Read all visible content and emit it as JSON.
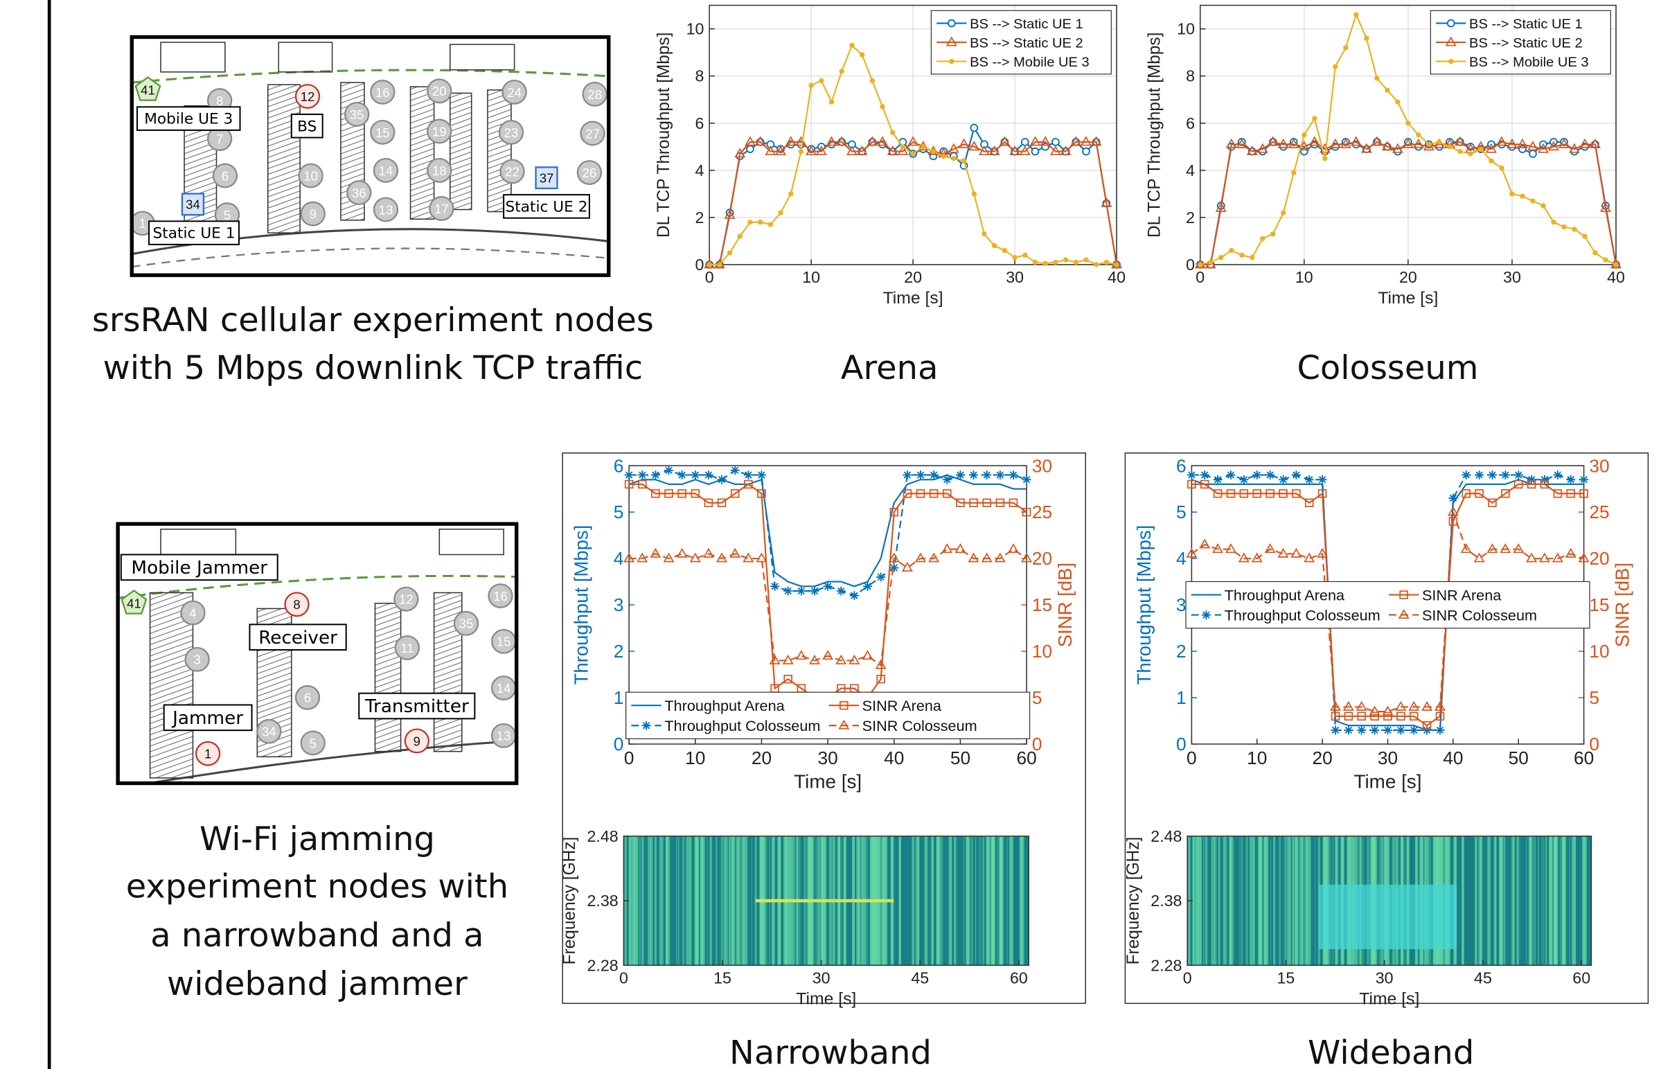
{
  "chart_data": [
    {
      "type": "line",
      "xlabel": "Time [s]",
      "ylabel": "DL TCP Throughput [Mbps]",
      "xlim": [
        0,
        40
      ],
      "ylim": [
        0,
        11
      ],
      "xticks": [
        0,
        10,
        20,
        30,
        40
      ],
      "yticks": [
        0,
        2,
        4,
        6,
        8,
        10
      ],
      "grid": true,
      "legend": "upper right",
      "x": [
        0,
        1,
        2,
        3,
        4,
        5,
        6,
        7,
        8,
        9,
        10,
        11,
        12,
        13,
        14,
        15,
        16,
        17,
        18,
        19,
        20,
        21,
        22,
        23,
        24,
        25,
        26,
        27,
        28,
        29,
        30,
        31,
        32,
        33,
        34,
        35,
        36,
        37,
        38,
        39,
        40
      ],
      "series": [
        {
          "name": "BS --> Static UE 1",
          "color": "#0072bd",
          "marker": "o",
          "values": [
            0,
            0,
            2.2,
            4.6,
            4.9,
            5.2,
            5.1,
            4.9,
            5.1,
            5.1,
            4.9,
            5.0,
            5.1,
            5.2,
            5.1,
            4.8,
            5.2,
            5.1,
            4.8,
            5.2,
            4.7,
            4.9,
            4.6,
            4.8,
            4.6,
            4.2,
            5.8,
            5.1,
            4.8,
            5.2,
            4.8,
            5.2,
            4.8,
            5.0,
            5.2,
            4.8,
            5.2,
            4.8,
            5.2,
            2.6,
            0
          ]
        },
        {
          "name": "BS --> Static UE 2",
          "color": "#d95319",
          "marker": "^",
          "values": [
            0,
            0,
            2.1,
            4.7,
            5.2,
            5.2,
            4.8,
            4.8,
            5.2,
            5.2,
            4.8,
            4.8,
            5.2,
            5.2,
            4.8,
            4.8,
            5.2,
            5.2,
            4.8,
            4.8,
            5.2,
            5.0,
            4.8,
            4.7,
            4.9,
            5.1,
            5.0,
            4.8,
            4.8,
            5.2,
            4.8,
            4.8,
            5.2,
            5.2,
            4.8,
            4.8,
            5.2,
            5.2,
            5.2,
            2.6,
            0
          ]
        },
        {
          "name": "BS --> Mobile UE 3",
          "color": "#edb120",
          "marker": ".",
          "values": [
            0,
            0,
            0.5,
            1.2,
            1.8,
            1.8,
            1.7,
            2.2,
            3.0,
            4.8,
            7.6,
            7.8,
            6.9,
            8.2,
            9.3,
            8.9,
            7.8,
            6.7,
            5.6,
            5.0,
            4.7,
            5.0,
            4.8,
            4.6,
            4.5,
            4.4,
            3.0,
            1.3,
            0.8,
            0.6,
            0.3,
            0.4,
            0.1,
            0.05,
            0.1,
            0.2,
            0.1,
            0.2,
            0,
            0.1,
            0
          ]
        }
      ]
    },
    {
      "type": "line",
      "xlabel": "Time [s]",
      "ylabel": "DL TCP Throughput [Mbps]",
      "xlim": [
        0,
        40
      ],
      "ylim": [
        0,
        11
      ],
      "xticks": [
        0,
        10,
        20,
        30,
        40
      ],
      "yticks": [
        0,
        2,
        4,
        6,
        8,
        10
      ],
      "grid": true,
      "legend": "upper right",
      "x": [
        0,
        1,
        2,
        3,
        4,
        5,
        6,
        7,
        8,
        9,
        10,
        11,
        12,
        13,
        14,
        15,
        16,
        17,
        18,
        19,
        20,
        21,
        22,
        23,
        24,
        25,
        26,
        27,
        28,
        29,
        30,
        31,
        32,
        33,
        34,
        35,
        36,
        37,
        38,
        39,
        40
      ],
      "series": [
        {
          "name": "BS --> Static UE 1",
          "color": "#0072bd",
          "marker": "o",
          "values": [
            0,
            0,
            2.5,
            5.0,
            5.2,
            4.8,
            4.8,
            5.2,
            5.0,
            5.2,
            4.8,
            5.1,
            4.8,
            5.0,
            5.2,
            5.1,
            4.9,
            5.2,
            5.0,
            4.8,
            5.2,
            5.0,
            5.1,
            5.0,
            5.2,
            5.2,
            5.0,
            4.9,
            5.1,
            5.1,
            5.0,
            4.9,
            4.7,
            5.1,
            5.2,
            5.2,
            4.8,
            5.0,
            5.1,
            2.5,
            0
          ]
        },
        {
          "name": "BS --> Static UE 2",
          "color": "#d95319",
          "marker": "^",
          "values": [
            0,
            0,
            2.4,
            5.1,
            5.1,
            4.8,
            4.9,
            5.2,
            5.1,
            5.1,
            5.0,
            5.2,
            4.9,
            5.1,
            5.1,
            5.2,
            4.9,
            5.2,
            5.0,
            4.9,
            5.1,
            5.1,
            5.0,
            5.1,
            5.1,
            5.2,
            4.9,
            5.0,
            4.9,
            5.2,
            5.1,
            5.1,
            5.0,
            4.9,
            5.0,
            5.1,
            4.9,
            5.1,
            5.1,
            2.4,
            0
          ]
        },
        {
          "name": "BS --> Mobile UE 3",
          "color": "#edb120",
          "marker": ".",
          "values": [
            0,
            0.1,
            0.3,
            0.6,
            0.4,
            0.3,
            1.1,
            1.3,
            2.2,
            3.9,
            5.5,
            6.2,
            4.5,
            8.4,
            9.2,
            10.6,
            9.6,
            7.9,
            7.4,
            6.9,
            6.0,
            5.5,
            5.1,
            5.2,
            5.0,
            4.8,
            4.7,
            4.9,
            4.4,
            4.1,
            3.0,
            2.9,
            2.7,
            2.5,
            1.8,
            1.6,
            1.5,
            1.2,
            0.5,
            0.2,
            0
          ]
        }
      ]
    },
    {
      "type": "line",
      "xlabel": "Time [s]",
      "ylabel": "Throughput [Mbps]",
      "y2label": "SINR [dB]",
      "ycolor": "#0072bd",
      "y2color": "#d95319",
      "xlim": [
        0,
        60
      ],
      "ylim": [
        0,
        6
      ],
      "y2lim": [
        0,
        30
      ],
      "xticks": [
        0,
        10,
        20,
        30,
        40,
        50,
        60
      ],
      "yticks": [
        0,
        1,
        2,
        3,
        4,
        5,
        6
      ],
      "y2ticks": [
        0,
        5,
        10,
        15,
        20,
        25,
        30
      ],
      "grid": false,
      "legend": "lower center",
      "legend_columns": 2,
      "x": [
        0,
        2,
        4,
        6,
        8,
        10,
        12,
        14,
        16,
        18,
        20,
        22,
        24,
        26,
        28,
        30,
        32,
        34,
        36,
        38,
        40,
        42,
        44,
        46,
        48,
        50,
        52,
        54,
        56,
        58,
        60
      ],
      "series": [
        {
          "name": "Throughput Arena",
          "color": "#0072bd",
          "marker": "none",
          "values": [
            5.6,
            5.7,
            5.7,
            5.6,
            5.6,
            5.7,
            5.6,
            5.7,
            5.6,
            5.6,
            5.7,
            3.7,
            3.5,
            3.4,
            3.4,
            3.5,
            3.5,
            3.4,
            3.5,
            4.0,
            5.2,
            5.6,
            5.7,
            5.7,
            5.8,
            5.7,
            5.6,
            5.6,
            5.6,
            5.5,
            5.5
          ]
        },
        {
          "name": "Throughput Colosseum",
          "color": "#0072bd",
          "marker": "*",
          "dash": true,
          "values": [
            5.8,
            5.8,
            5.8,
            5.9,
            5.8,
            5.8,
            5.8,
            5.7,
            5.9,
            5.8,
            5.8,
            3.4,
            3.3,
            3.3,
            3.3,
            3.4,
            3.3,
            3.2,
            3.4,
            3.6,
            3.8,
            5.8,
            5.8,
            5.8,
            5.7,
            5.8,
            5.8,
            5.8,
            5.8,
            5.8,
            5.7
          ]
        },
        {
          "name": "SINR Arena",
          "color": "#d95319",
          "marker": "s",
          "axis": "y2",
          "values": [
            28,
            28,
            27,
            27,
            27,
            27,
            26,
            26,
            27,
            28,
            27,
            6,
            7,
            6,
            5,
            5,
            6,
            6,
            5,
            7,
            25,
            27,
            27,
            27,
            27,
            26,
            26,
            26,
            26,
            26,
            25
          ]
        },
        {
          "name": "SINR Colosseum",
          "color": "#d95319",
          "marker": "^",
          "dash": true,
          "axis": "y2",
          "values": [
            20,
            20,
            20.5,
            20,
            20.5,
            20,
            20.5,
            20,
            20.5,
            20,
            20,
            9,
            9,
            9.5,
            9,
            9.5,
            9,
            9,
            9.5,
            8.5,
            20,
            19,
            20,
            20,
            21,
            21,
            20,
            20,
            20,
            21,
            20
          ]
        }
      ]
    },
    {
      "type": "line",
      "xlabel": "Time [s]",
      "ylabel": "Throughput [Mbps]",
      "y2label": "SINR [dB]",
      "ycolor": "#0072bd",
      "y2color": "#d95319",
      "xlim": [
        0,
        60
      ],
      "ylim": [
        0,
        6
      ],
      "y2lim": [
        0,
        30
      ],
      "xticks": [
        0,
        10,
        20,
        30,
        40,
        50,
        60
      ],
      "yticks": [
        0,
        1,
        2,
        3,
        4,
        5,
        6
      ],
      "y2ticks": [
        0,
        5,
        10,
        15,
        20,
        25,
        30
      ],
      "grid": false,
      "legend": "center",
      "legend_columns": 2,
      "x": [
        0,
        2,
        4,
        6,
        8,
        10,
        12,
        14,
        16,
        18,
        20,
        22,
        24,
        26,
        28,
        30,
        32,
        34,
        36,
        38,
        40,
        42,
        44,
        46,
        48,
        50,
        52,
        54,
        56,
        58,
        60
      ],
      "series": [
        {
          "name": "Throughput Arena",
          "color": "#0072bd",
          "marker": "none",
          "values": [
            5.7,
            5.6,
            5.6,
            5.6,
            5.6,
            5.6,
            5.6,
            5.6,
            5.6,
            5.6,
            5.6,
            0.5,
            0.4,
            0.4,
            0.4,
            0.4,
            0.4,
            0.4,
            0.3,
            0.3,
            5.2,
            5.6,
            5.6,
            5.6,
            5.6,
            5.7,
            5.6,
            5.6,
            5.6,
            5.6,
            5.6
          ]
        },
        {
          "name": "Throughput Colosseum",
          "color": "#0072bd",
          "marker": "*",
          "dash": true,
          "values": [
            5.8,
            5.8,
            5.7,
            5.8,
            5.7,
            5.8,
            5.8,
            5.7,
            5.8,
            5.7,
            5.7,
            0.3,
            0.3,
            0.3,
            0.3,
            0.3,
            0.3,
            0.3,
            0.3,
            0.3,
            5.3,
            5.8,
            5.8,
            5.8,
            5.8,
            5.8,
            5.7,
            5.7,
            5.8,
            5.7,
            5.7
          ]
        },
        {
          "name": "SINR Arena",
          "color": "#d95319",
          "marker": "s",
          "axis": "y2",
          "values": [
            28,
            28,
            27,
            27,
            27,
            27,
            27,
            27,
            27,
            26,
            27,
            3,
            3,
            3,
            3,
            3,
            3,
            3,
            2,
            3,
            24,
            27,
            27,
            26,
            27,
            28,
            28,
            28,
            27,
            27,
            27
          ]
        },
        {
          "name": "SINR Colosseum",
          "color": "#d95319",
          "marker": "^",
          "dash": true,
          "axis": "y2",
          "values": [
            20.5,
            21.5,
            21,
            21,
            20,
            20,
            21,
            20.5,
            20.5,
            20,
            20.5,
            4,
            4,
            4,
            3.5,
            3.5,
            4,
            4,
            4,
            4,
            25,
            21,
            20,
            21,
            21,
            21,
            20,
            20,
            20,
            20.5,
            20
          ]
        }
      ]
    },
    {
      "type": "spectrogram",
      "xlabel": "Time [s]",
      "ylabel": "Frequency [GHz]",
      "xlim": [
        0,
        61.5
      ],
      "ylim": [
        2.28,
        2.48
      ],
      "xticks": [
        0,
        15,
        30,
        45,
        60
      ],
      "yticks": [
        2.28,
        2.38,
        2.48
      ],
      "background": "#197f87",
      "color": "#63d9a6",
      "jammer_color": "#d7e35a",
      "jammer": {
        "time": [
          20,
          41
        ],
        "frequency": [
          2.38,
          2.38
        ]
      }
    },
    {
      "type": "spectrogram",
      "xlabel": "Time [s]",
      "ylabel": "Frequency [GHz]",
      "xlim": [
        0,
        61.5
      ],
      "ylim": [
        2.28,
        2.48
      ],
      "xticks": [
        0,
        15,
        30,
        45,
        60
      ],
      "yticks": [
        2.28,
        2.38,
        2.48
      ],
      "background": "#197f87",
      "color": "#63d9a6",
      "jammer_color": "#45d8d6",
      "jammer": {
        "time": [
          20,
          41
        ],
        "frequency": [
          2.305,
          2.405
        ]
      }
    }
  ],
  "maps": [
    {
      "nodes": [
        {
          "label": "41",
          "kind": "green"
        },
        {
          "label": "12",
          "kind": "red"
        },
        {
          "label": "8",
          "kind": "gray"
        },
        {
          "label": "7",
          "kind": "gray"
        },
        {
          "label": "6",
          "kind": "gray"
        },
        {
          "label": "5",
          "kind": "gray"
        },
        {
          "label": "1",
          "kind": "gray"
        },
        {
          "label": "34",
          "kind": "blue"
        },
        {
          "label": "35",
          "kind": "gray"
        },
        {
          "label": "16",
          "kind": "gray"
        },
        {
          "label": "15",
          "kind": "gray"
        },
        {
          "label": "14",
          "kind": "gray"
        },
        {
          "label": "13",
          "kind": "gray"
        },
        {
          "label": "36",
          "kind": "gray"
        },
        {
          "label": "10",
          "kind": "gray"
        },
        {
          "label": "9",
          "kind": "gray"
        },
        {
          "label": "20",
          "kind": "gray"
        },
        {
          "label": "19",
          "kind": "gray"
        },
        {
          "label": "18",
          "kind": "gray"
        },
        {
          "label": "17",
          "kind": "gray"
        },
        {
          "label": "24",
          "kind": "gray"
        },
        {
          "label": "23",
          "kind": "gray"
        },
        {
          "label": "22",
          "kind": "gray"
        },
        {
          "label": "37",
          "kind": "blue"
        },
        {
          "label": "28",
          "kind": "gray"
        },
        {
          "label": "27",
          "kind": "gray"
        },
        {
          "label": "26",
          "kind": "gray"
        }
      ],
      "labels": [
        "Mobile UE 3",
        "BS",
        "Static UE 2",
        "Static UE 1"
      ]
    },
    {
      "nodes": [
        {
          "label": "41",
          "kind": "green"
        },
        {
          "label": "8",
          "kind": "red"
        },
        {
          "label": "4",
          "kind": "gray"
        },
        {
          "label": "3",
          "kind": "gray"
        },
        {
          "label": "6",
          "kind": "gray"
        },
        {
          "label": "34",
          "kind": "gray"
        },
        {
          "label": "5",
          "kind": "gray"
        },
        {
          "label": "1",
          "kind": "red"
        },
        {
          "label": "9",
          "kind": "red"
        },
        {
          "label": "12",
          "kind": "gray"
        },
        {
          "label": "11",
          "kind": "gray"
        },
        {
          "label": "35",
          "kind": "gray"
        },
        {
          "label": "16",
          "kind": "gray"
        },
        {
          "label": "15",
          "kind": "gray"
        },
        {
          "label": "14",
          "kind": "gray"
        },
        {
          "label": "13",
          "kind": "gray"
        }
      ],
      "labels": [
        "Mobile Jammer",
        "Receiver",
        "Jammer",
        "Transmitter"
      ]
    }
  ],
  "captions": {
    "cellular": [
      "srsRAN cellular experiment nodes",
      "with 5 Mbps downlink TCP traffic"
    ],
    "jamming": [
      "Wi-Fi jamming",
      "experiment nodes with",
      "a narrowband and a",
      "wideband jammer"
    ],
    "arena": "Arena",
    "colosseum": "Colosseum",
    "narrowband": "Narrowband",
    "wideband": "Wideband"
  }
}
